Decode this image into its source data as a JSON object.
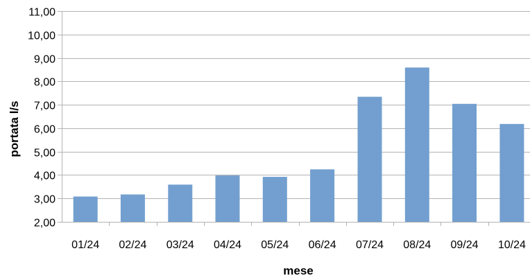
{
  "chart_data": {
    "type": "bar",
    "title": "",
    "xlabel": "mese",
    "ylabel": "portata l/s",
    "categories": [
      "01/24",
      "02/24",
      "03/24",
      "04/24",
      "05/24",
      "06/24",
      "07/24",
      "08/24",
      "09/24",
      "10/24"
    ],
    "series": [
      {
        "values": [
          3.08,
          3.17,
          3.59,
          3.98,
          3.92,
          4.24,
          7.34,
          8.59,
          7.04,
          6.18
        ],
        "color": "#729fcf"
      }
    ],
    "ylim": [
      2,
      11
    ],
    "ytick_step": 1,
    "ytick_labels": [
      "2,00",
      "3,00",
      "4,00",
      "5,00",
      "6,00",
      "7,00",
      "8,00",
      "9,00",
      "10,00",
      "11,00"
    ],
    "grid": "horizontal",
    "legend": "none",
    "colors": {
      "grid": "#b3b3b3",
      "bar": "#729fcf"
    }
  }
}
